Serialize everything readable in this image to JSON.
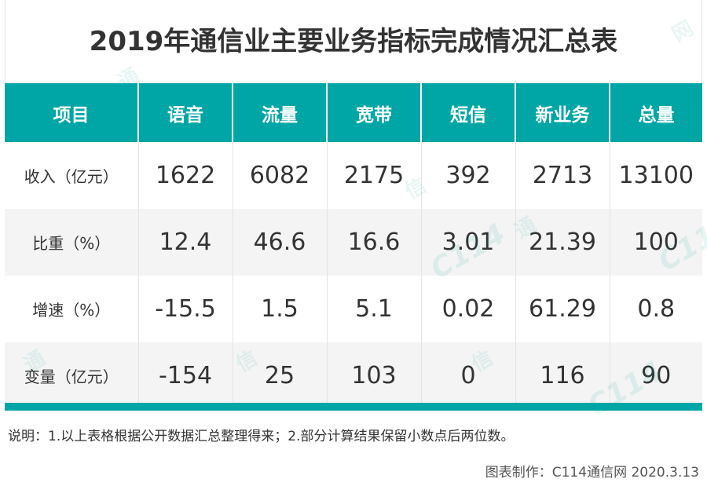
{
  "title": "2019年通信业主要业务指标完成情况汇总表",
  "headers": [
    "项目",
    "语音",
    "流量",
    "宽带",
    "短信",
    "新业务",
    "总量"
  ],
  "rows": [
    {
      "label": "收入（亿元）",
      "values": [
        "1622",
        "6082",
        "2175",
        "392",
        "2713",
        "13100"
      ]
    },
    {
      "label": "比重（%）",
      "values": [
        "12.4",
        "46.6",
        "16.6",
        "3.01",
        "21.39",
        "100"
      ]
    },
    {
      "label": "增速（%）",
      "values": [
        "-15.5",
        "1.5",
        "5.1",
        "0.02",
        "61.29",
        "0.8"
      ]
    },
    {
      "label": "变量（亿元）",
      "values": [
        "-154",
        "25",
        "103",
        "0",
        "116",
        "90"
      ]
    }
  ],
  "note": "说明：1.以上表格根据公开数据汇总整理得来；2.部分计算结果保留小数点后两位数。",
  "credit": "图表制作：C114通信网  2020.3.13",
  "watermark": {
    "chars": [
      "通",
      "信",
      "网"
    ],
    "logo": "C114"
  },
  "colors": {
    "header_bg": "#00a6a6",
    "header_text": "#ffffff",
    "row_alt_bg": "#f4f4f4",
    "text": "#333333"
  }
}
